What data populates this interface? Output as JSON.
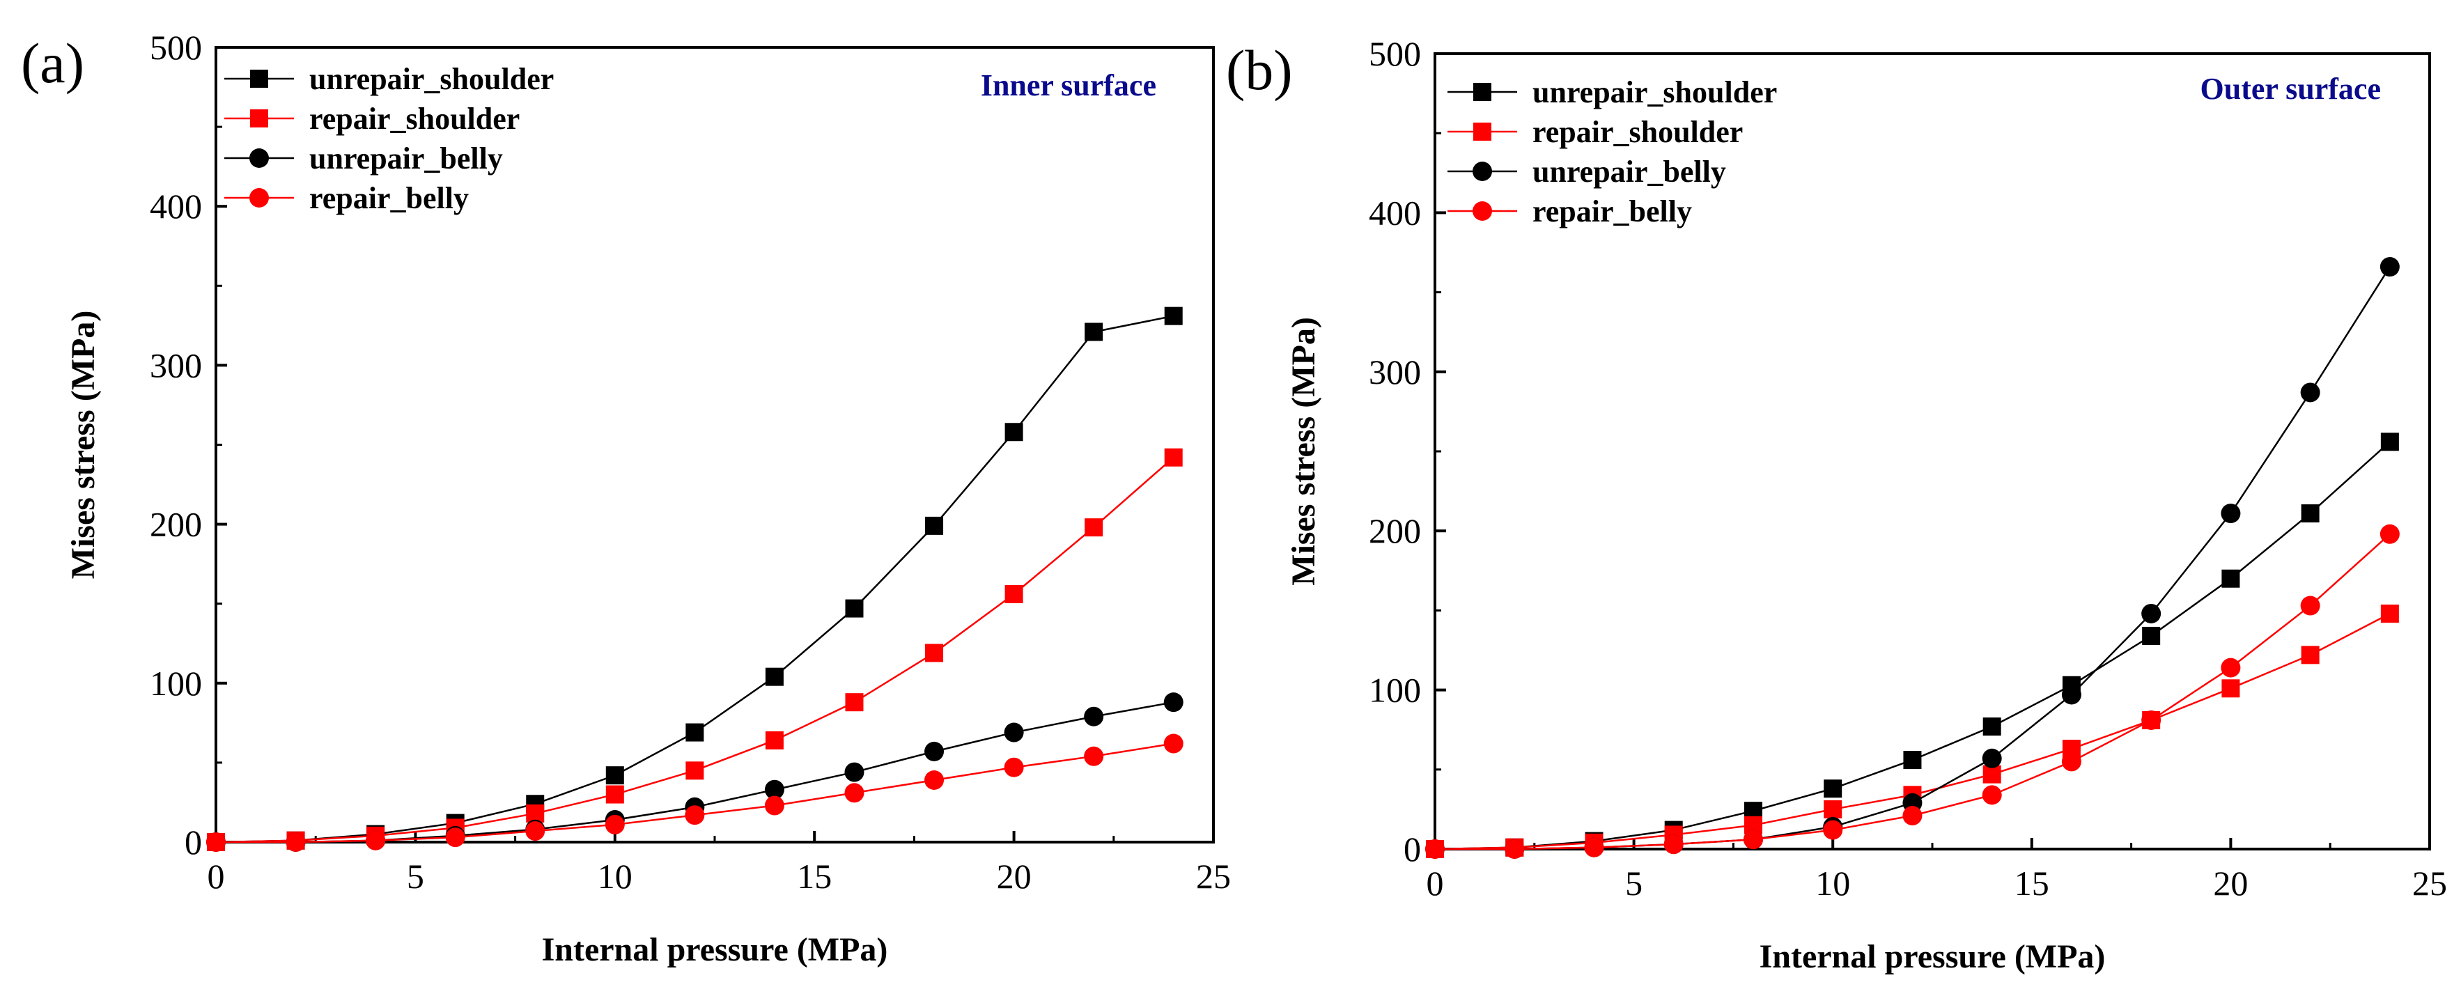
{
  "figure": {
    "panels": [
      {
        "label": "(a)",
        "surface": "Inner surface"
      },
      {
        "label": "(b)",
        "surface": "Outer surface"
      }
    ]
  },
  "colors": {
    "black": "#000000",
    "red": "#ff0000",
    "annotation": "#0a0a8c"
  },
  "chart_data": [
    {
      "type": "line",
      "panel": "(a)",
      "title": "",
      "annotation": "Inner surface",
      "xlabel": "Internal pressure (MPa)",
      "ylabel": "Mises stress (MPa)",
      "xlim": [
        0,
        25
      ],
      "ylim": [
        0,
        500
      ],
      "xticks": [
        0,
        5,
        10,
        15,
        20,
        25
      ],
      "yticks": [
        0,
        100,
        200,
        300,
        400,
        500
      ],
      "x": [
        0,
        2,
        4,
        6,
        8,
        10,
        12,
        14,
        16,
        18,
        20,
        22,
        24
      ],
      "legend": "top-left",
      "series": [
        {
          "name": "unrepair_shoulder",
          "color": "#000000",
          "marker": "square",
          "values": [
            0,
            1,
            5,
            12,
            24,
            42,
            69,
            104,
            147,
            199,
            258,
            321,
            331
          ]
        },
        {
          "name": "repair_shoulder",
          "color": "#ff0000",
          "marker": "square",
          "values": [
            0,
            1,
            4,
            9,
            18,
            30,
            45,
            64,
            88,
            119,
            156,
            198,
            242
          ]
        },
        {
          "name": "unrepair_belly",
          "color": "#000000",
          "marker": "circle",
          "values": [
            0,
            0,
            1,
            4,
            8,
            14,
            22,
            33,
            44,
            57,
            69,
            79,
            88
          ]
        },
        {
          "name": "repair_belly",
          "color": "#ff0000",
          "marker": "circle",
          "values": [
            0,
            0,
            1,
            3,
            7,
            11,
            17,
            23,
            31,
            39,
            47,
            54,
            62
          ]
        }
      ]
    },
    {
      "type": "line",
      "panel": "(b)",
      "title": "",
      "annotation": "Outer surface",
      "xlabel": "Internal pressure (MPa)",
      "ylabel": "Mises stress (MPa)",
      "xlim": [
        0,
        25
      ],
      "ylim": [
        0,
        500
      ],
      "xticks": [
        0,
        5,
        10,
        15,
        20,
        25
      ],
      "yticks": [
        0,
        100,
        200,
        300,
        400,
        500
      ],
      "x": [
        0,
        2,
        4,
        6,
        8,
        10,
        12,
        14,
        16,
        18,
        20,
        22,
        24
      ],
      "legend": "top-left",
      "series": [
        {
          "name": "unrepair_shoulder",
          "color": "#000000",
          "marker": "square",
          "values": [
            0,
            1,
            5,
            12,
            24,
            38,
            56,
            77,
            103,
            134,
            170,
            211,
            256
          ]
        },
        {
          "name": "repair_shoulder",
          "color": "#ff0000",
          "marker": "square",
          "values": [
            0,
            1,
            4,
            9,
            15,
            25,
            34,
            47,
            63,
            81,
            101,
            122,
            148
          ]
        },
        {
          "name": "unrepair_belly",
          "color": "#000000",
          "marker": "circle",
          "values": [
            0,
            0,
            1,
            3,
            6,
            14,
            29,
            57,
            97,
            148,
            211,
            287,
            366
          ]
        },
        {
          "name": "repair_belly",
          "color": "#ff0000",
          "marker": "circle",
          "values": [
            0,
            0,
            1,
            3,
            6,
            12,
            21,
            34,
            55,
            81,
            114,
            153,
            198
          ]
        }
      ]
    }
  ]
}
